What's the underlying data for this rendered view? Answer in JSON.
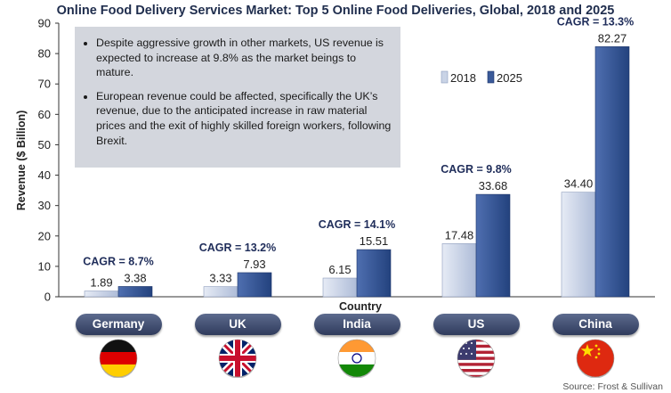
{
  "colors": {
    "series_2018": "#c9d3e6",
    "series_2025": "#3a5a99",
    "title": "#1f2d4d",
    "pill": "#3f4c70",
    "note_bg": "#d3d6dd"
  },
  "notes": [
    "Despite aggressive growth in other markets, US revenue is expected to increase at 9.8% as the market beings to mature.",
    "European revenue could be affected, specifically the UK’s revenue, due to the anticipated increase in raw material prices and the exit of highly skilled foreign workers, following Brexit."
  ],
  "source": "Source: Frost & Sullivan",
  "flags": [
    "germany-flag-icon",
    "uk-flag-icon",
    "india-flag-icon",
    "us-flag-icon",
    "china-flag-icon"
  ],
  "chart_data": {
    "type": "bar",
    "title": "Online Food Delivery Services Market: Top 5 Online Food Deliveries, Global, 2018 and 2025",
    "xlabel": "Country",
    "ylabel": "Revenue ($ Billion)",
    "ylim": [
      0,
      90
    ],
    "yticks": [
      0,
      10,
      20,
      30,
      40,
      50,
      60,
      70,
      80,
      90
    ],
    "grid": false,
    "legend_position": "top-right",
    "categories": [
      "Germany",
      "UK",
      "India",
      "US",
      "China"
    ],
    "series": [
      {
        "name": "2018",
        "values": [
          1.89,
          3.33,
          6.15,
          17.48,
          34.4
        ],
        "labels": [
          "1.89",
          "3.33",
          "6.15",
          "17.48",
          "34.40"
        ]
      },
      {
        "name": "2025",
        "values": [
          3.38,
          7.93,
          15.51,
          33.68,
          82.27
        ],
        "labels": [
          "3.38",
          "7.93",
          "15.51",
          "33.68",
          "82.27"
        ]
      }
    ],
    "annotations": [
      "CAGR = 8.7%",
      "CAGR = 13.2%",
      "CAGR = 14.1%",
      "CAGR = 9.8%",
      "CAGR = 13.3%"
    ]
  }
}
